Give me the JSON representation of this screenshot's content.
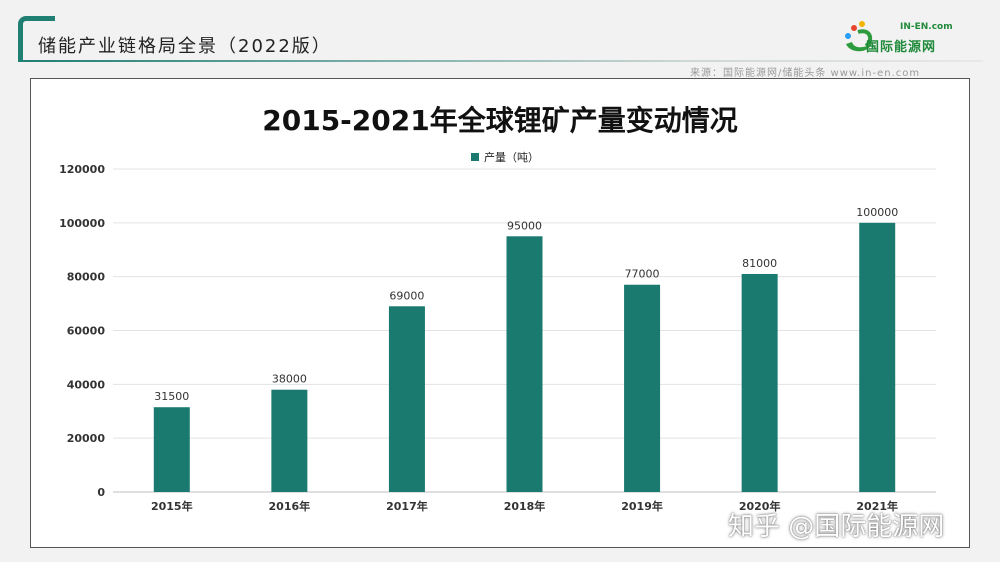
{
  "header": {
    "title": "储能产业链格局全景（2022版）",
    "source": "来源：国际能源网/储能头条 www.in-en.com"
  },
  "logo": {
    "small_text": "IN-EN.com",
    "name": "国际能源网"
  },
  "watermark": "知乎 @国际能源网",
  "colors": {
    "accent": "#1f7f73",
    "bar": "#1a7a70"
  },
  "chart_data": {
    "type": "bar",
    "title": "2015-2021年全球锂矿产量变动情况",
    "categories": [
      "2015年",
      "2016年",
      "2017年",
      "2018年",
      "2019年",
      "2020年",
      "2021年"
    ],
    "series": [
      {
        "name": "产量（吨）",
        "values": [
          31500,
          38000,
          69000,
          95000,
          77000,
          81000,
          100000
        ]
      }
    ],
    "data_labels": [
      "31500",
      "38000",
      "69000",
      "95000",
      "77000",
      "81000",
      "100000"
    ],
    "ylim": [
      0,
      120000
    ],
    "yticks": [
      "0",
      "20000",
      "40000",
      "60000",
      "80000",
      "100000",
      "120000"
    ],
    "grid": true,
    "legend_position": "top-center"
  }
}
